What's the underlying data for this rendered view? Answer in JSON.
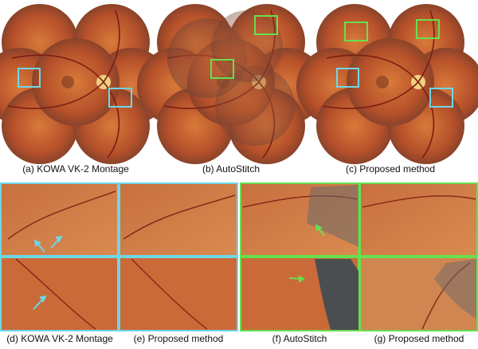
{
  "top_captions": [
    "(a) KOWA VK-2 Montage",
    "(b) AutoStitch",
    "(c) Proposed method"
  ],
  "bottom_captions": [
    "(d) KOWA VK-2 Montage",
    "(e) Proposed method",
    "(f) AutoStitch",
    "(g) Proposed method"
  ]
}
